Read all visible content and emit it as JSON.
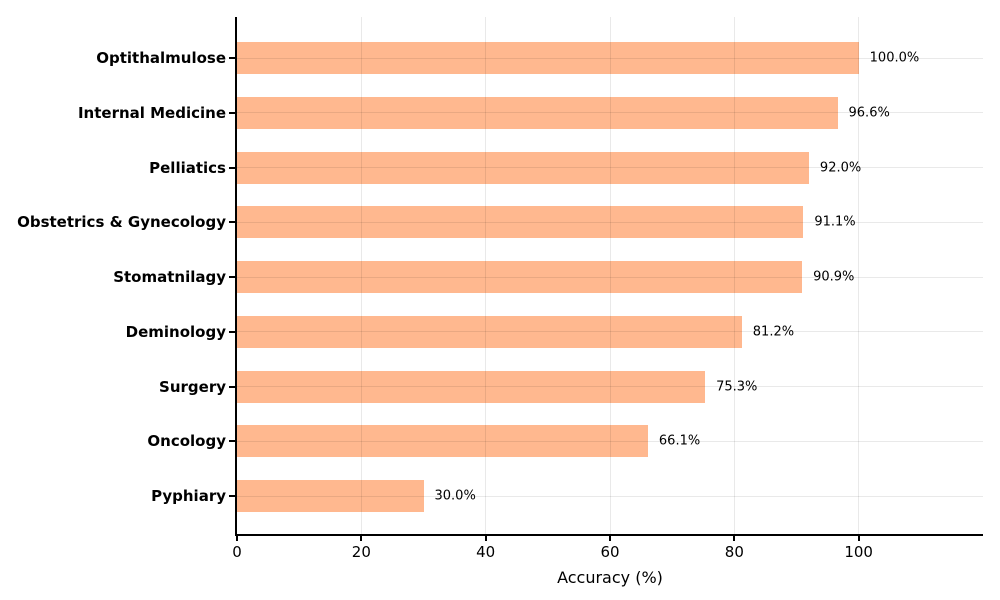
{
  "chart_data": {
    "type": "bar",
    "orientation": "horizontal",
    "title": "",
    "xlabel": "Accuracy (%)",
    "ylabel": "",
    "categories": [
      "Optithalmulose",
      "Internal Medicine",
      "Pelliatics",
      "Obstetrics & Gynecology",
      "Stomatnilagy",
      "Deminology",
      "Surgery",
      "Oncology",
      "Pyphiary"
    ],
    "values": [
      100.0,
      96.6,
      92.0,
      91.1,
      90.9,
      81.2,
      75.3,
      66.1,
      30.0
    ],
    "value_labels": [
      "100.0%",
      "96.6%",
      "92.0%",
      "91.1%",
      "90.9%",
      "81.2%",
      "75.3%",
      "66.1%",
      "30.0%"
    ],
    "xlim": [
      0,
      120
    ],
    "xticks": [
      0,
      20,
      40,
      60,
      80,
      100
    ],
    "grid": true,
    "legend": false,
    "bar_color": "#ffb88f",
    "gridline_color": "#eaeaea",
    "axis_color": "#000000"
  }
}
